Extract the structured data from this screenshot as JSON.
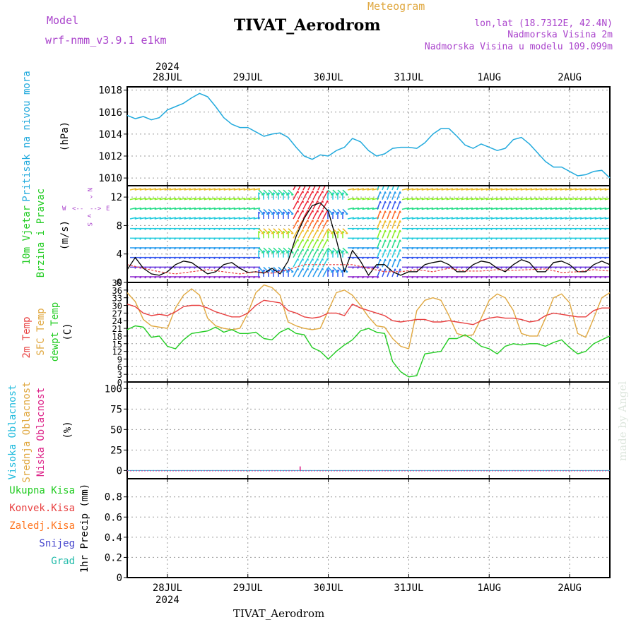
{
  "header": {
    "model_label": "Model",
    "model_name": "wrf-nmm_v3.9.1 e1km",
    "meteogram_label": "Meteogram",
    "station_title": "TIVAT_Aerodrom",
    "lonlat": "lon,lat (18.7312E, 42.4N)",
    "elevation": "Nadmorska Visina 2m",
    "model_elevation": "Nadmorska Visina u modelu 109.099m",
    "footer_station": "TIVAT_Aerodrom",
    "watermark": "made by Angel"
  },
  "colors": {
    "pressure": "#22aadd",
    "temp2m": "#e84040",
    "sfc_temp": "#e0a840",
    "dewpoint": "#22cc22",
    "wind_speed": "#000000",
    "gust": "#e84040",
    "high_cloud": "#22bbdd",
    "mid_cloud": "#e0a840",
    "low_cloud": "#dd2288",
    "total_precip": "#22cc22",
    "conv_precip": "#e84040",
    "frozen_precip": "#ff7722",
    "snow": "#4444cc",
    "hail": "#22bbaa",
    "left_legend_purple": "#aa44cc"
  },
  "chart_data": [
    {
      "type": "line",
      "panel": "pressure",
      "ylabel_side": "Pritisak na nivou mora",
      "ylabel_unit": "(hPa)",
      "ylim": [
        1009.3,
        1018.3
      ],
      "yticks": [
        "1010",
        "1012",
        "1014",
        "1016",
        "1018"
      ],
      "grid": true,
      "x_top_year": "2024",
      "x_tick_labels": [
        "28JUL",
        "29JUL",
        "30JUL",
        "31JUL",
        "1AUG",
        "2AUG"
      ],
      "x_days": [
        0,
        1,
        2,
        3,
        4,
        5
      ],
      "x_range_days": [
        -0.5,
        5.5
      ],
      "series": [
        {
          "x": [
            -0.5,
            -0.4,
            -0.3,
            -0.2,
            -0.1,
            0.0,
            0.1,
            0.2,
            0.3,
            0.4,
            0.5,
            0.6,
            0.7,
            0.8,
            0.9,
            1.0,
            1.1,
            1.2,
            1.3,
            1.4,
            1.5,
            1.6,
            1.7,
            1.8,
            1.9,
            2.0,
            2.1,
            2.2,
            2.3,
            2.4,
            2.5,
            2.6,
            2.7,
            2.8,
            2.9,
            3.0,
            3.1,
            3.2,
            3.3,
            3.4,
            3.5,
            3.6,
            3.7,
            3.8,
            3.9,
            4.0,
            4.1,
            4.2,
            4.3,
            4.4,
            4.5,
            4.6,
            4.7,
            4.8,
            4.9,
            5.0,
            5.1,
            5.2,
            5.3,
            5.4,
            5.5
          ],
          "values": [
            1015.7,
            1015.4,
            1015.6,
            1015.3,
            1015.5,
            1016.2,
            1016.5,
            1016.8,
            1017.3,
            1017.7,
            1017.4,
            1016.5,
            1015.5,
            1014.9,
            1014.6,
            1014.6,
            1014.2,
            1013.8,
            1014.0,
            1014.1,
            1013.7,
            1012.8,
            1012.0,
            1011.7,
            1012.1,
            1012.0,
            1012.5,
            1012.8,
            1013.6,
            1013.3,
            1012.5,
            1012.0,
            1012.2,
            1012.7,
            1012.8,
            1012.8,
            1012.7,
            1013.2,
            1014.0,
            1014.5,
            1014.5,
            1013.8,
            1013.0,
            1012.7,
            1013.1,
            1012.8,
            1012.5,
            1012.7,
            1013.5,
            1013.7,
            1013.1,
            1012.3,
            1011.5,
            1011.0,
            1011.0,
            1010.6,
            1010.2,
            1010.3,
            1010.6,
            1010.7,
            1010.0
          ]
        }
      ]
    },
    {
      "type": "line",
      "panel": "wind",
      "ylabel_side": [
        "10m Vjetar",
        "Brzina i Pravac"
      ],
      "ylabel_unit": "(m/s)",
      "compass_labels": {
        "north": "N",
        "south": "S",
        "west": "W",
        "east": "E",
        "north_sym": "^",
        "south_sym": "v",
        "west_sym": "<--",
        "east_sym": "-->"
      },
      "ylim": [
        0,
        13.6
      ],
      "yticks": [
        "0",
        "4",
        "8",
        "12"
      ],
      "grid": true,
      "series": [
        {
          "name": "speed",
          "x": [
            -0.5,
            -0.4,
            -0.3,
            -0.2,
            -0.1,
            0.0,
            0.1,
            0.2,
            0.3,
            0.4,
            0.5,
            0.6,
            0.7,
            0.8,
            0.9,
            1.0,
            1.1,
            1.2,
            1.3,
            1.4,
            1.5,
            1.6,
            1.7,
            1.8,
            1.9,
            2.0,
            2.1,
            2.2,
            2.3,
            2.4,
            2.5,
            2.6,
            2.7,
            2.8,
            2.9,
            3.0,
            3.1,
            3.2,
            3.3,
            3.4,
            3.5,
            3.6,
            3.7,
            3.8,
            3.9,
            4.0,
            4.1,
            4.2,
            4.3,
            4.4,
            4.5,
            4.6,
            4.7,
            4.8,
            4.9,
            5.0,
            5.1,
            5.2,
            5.3,
            5.4,
            5.5
          ],
          "values": [
            1.8,
            3.5,
            2.0,
            1.2,
            1.0,
            1.5,
            2.5,
            3.0,
            2.8,
            2.0,
            1.2,
            1.5,
            2.5,
            2.8,
            2.0,
            1.4,
            1.5,
            1.3,
            2.0,
            1.2,
            3.0,
            6.5,
            9.0,
            10.8,
            11.2,
            10.0,
            6.0,
            1.5,
            4.5,
            3.0,
            1.0,
            2.5,
            2.5,
            1.5,
            1.0,
            1.5,
            1.5,
            2.5,
            2.8,
            3.0,
            2.5,
            1.5,
            1.5,
            2.5,
            3.0,
            2.8,
            2.0,
            1.5,
            2.5,
            3.2,
            2.8,
            1.5,
            1.5,
            2.8,
            3.0,
            2.5,
            1.5,
            1.5,
            2.5,
            3.0,
            2.5
          ]
        },
        {
          "name": "gust",
          "x": [
            -0.5,
            -0.3,
            -0.1,
            0.1,
            0.3,
            0.5,
            0.7,
            0.9,
            1.1,
            1.3,
            1.5,
            1.7,
            1.9,
            2.1,
            2.3,
            2.5,
            2.7,
            2.9,
            3.1,
            3.3,
            3.5,
            3.7,
            3.9,
            4.1,
            4.3,
            4.5,
            4.7,
            4.9,
            5.1,
            5.3,
            5.5
          ],
          "values": [
            2.5,
            2.0,
            1.5,
            1.2,
            1.5,
            1.8,
            1.5,
            1.2,
            1.5,
            1.3,
            1.8,
            2.5,
            2.5,
            2.5,
            2.5,
            2.0,
            1.5,
            1.5,
            1.8,
            1.5,
            2.0,
            1.6,
            1.6,
            1.8,
            1.7,
            1.8,
            1.9,
            1.4,
            1.5,
            1.8,
            1.6
          ]
        }
      ]
    },
    {
      "type": "line",
      "panel": "temperature",
      "ylabel_side": [
        "2m Temp",
        "SFC Temp",
        "dewpt Temp"
      ],
      "ylabel_unit": "(C)",
      "ylim": [
        0,
        39
      ],
      "yticks": [
        "0",
        "3",
        "6",
        "9",
        "12",
        "15",
        "18",
        "21",
        "24",
        "27",
        "30",
        "33",
        "36",
        "39"
      ],
      "grid": true,
      "series": [
        {
          "name": "2m Temp",
          "x": [
            -0.5,
            -0.4,
            -0.3,
            -0.2,
            -0.1,
            0.0,
            0.1,
            0.2,
            0.3,
            0.4,
            0.5,
            0.6,
            0.7,
            0.8,
            0.9,
            1.0,
            1.1,
            1.2,
            1.3,
            1.4,
            1.5,
            1.6,
            1.7,
            1.8,
            1.9,
            2.0,
            2.1,
            2.2,
            2.3,
            2.4,
            2.5,
            2.6,
            2.7,
            2.8,
            2.9,
            3.0,
            3.1,
            3.2,
            3.3,
            3.4,
            3.5,
            3.6,
            3.7,
            3.8,
            3.9,
            4.0,
            4.1,
            4.2,
            4.3,
            4.4,
            4.5,
            4.6,
            4.7,
            4.8,
            4.9,
            5.0,
            5.1,
            5.2,
            5.3,
            5.4,
            5.5
          ],
          "values": [
            30.5,
            29.5,
            27.0,
            26.0,
            26.5,
            26.0,
            27.5,
            29.5,
            30.0,
            30.0,
            29.0,
            27.5,
            26.5,
            25.5,
            25.5,
            27.0,
            30.0,
            32.0,
            31.5,
            31.0,
            28.0,
            27.0,
            25.5,
            25.0,
            25.5,
            27.0,
            27.0,
            26.0,
            30.5,
            29.0,
            28.0,
            27.0,
            26.0,
            24.0,
            23.5,
            24.0,
            24.5,
            24.5,
            23.5,
            23.5,
            24.0,
            23.5,
            23.0,
            22.5,
            24.0,
            25.0,
            25.5,
            25.0,
            25.0,
            24.5,
            23.5,
            24.0,
            26.0,
            27.0,
            26.5,
            26.0,
            25.5,
            25.5,
            28.0,
            29.0,
            29.0
          ]
        },
        {
          "name": "SFC Temp",
          "x": [
            -0.5,
            -0.4,
            -0.3,
            -0.2,
            -0.1,
            0.0,
            0.1,
            0.2,
            0.3,
            0.4,
            0.5,
            0.6,
            0.7,
            0.8,
            0.9,
            1.0,
            1.1,
            1.2,
            1.3,
            1.4,
            1.5,
            1.6,
            1.7,
            1.8,
            1.9,
            2.0,
            2.1,
            2.2,
            2.3,
            2.4,
            2.5,
            2.6,
            2.7,
            2.8,
            2.9,
            3.0,
            3.1,
            3.2,
            3.3,
            3.4,
            3.5,
            3.6,
            3.7,
            3.8,
            3.9,
            4.0,
            4.1,
            4.2,
            4.3,
            4.4,
            4.5,
            4.6,
            4.7,
            4.8,
            4.9,
            5.0,
            5.1,
            5.2,
            5.3,
            5.4,
            5.5
          ],
          "values": [
            35.0,
            31.5,
            24.5,
            22.0,
            21.5,
            21.0,
            29.0,
            34.0,
            36.5,
            34.0,
            25.0,
            22.0,
            21.0,
            20.5,
            21.0,
            27.0,
            35.0,
            38.0,
            37.0,
            34.0,
            23.5,
            22.0,
            21.0,
            20.5,
            21.0,
            28.0,
            35.0,
            36.0,
            34.0,
            30.0,
            25.5,
            22.0,
            21.5,
            17.0,
            14.0,
            13.0,
            28.0,
            32.0,
            33.0,
            32.0,
            26.0,
            19.0,
            18.0,
            18.5,
            25.0,
            32.0,
            34.5,
            33.0,
            28.0,
            19.0,
            18.0,
            18.0,
            25.0,
            33.0,
            34.5,
            31.0,
            19.0,
            17.5,
            25.0,
            33.0,
            35.0
          ]
        },
        {
          "name": "dewpt Temp",
          "x": [
            -0.5,
            -0.4,
            -0.3,
            -0.2,
            -0.1,
            0.0,
            0.1,
            0.2,
            0.3,
            0.4,
            0.5,
            0.6,
            0.7,
            0.8,
            0.9,
            1.0,
            1.1,
            1.2,
            1.3,
            1.4,
            1.5,
            1.6,
            1.7,
            1.8,
            1.9,
            2.0,
            2.1,
            2.2,
            2.3,
            2.4,
            2.5,
            2.6,
            2.7,
            2.8,
            2.9,
            3.0,
            3.1,
            3.2,
            3.3,
            3.4,
            3.5,
            3.6,
            3.7,
            3.8,
            3.9,
            4.0,
            4.1,
            4.2,
            4.3,
            4.4,
            4.5,
            4.6,
            4.7,
            4.8,
            4.9,
            5.0,
            5.1,
            5.2,
            5.3,
            5.4,
            5.5
          ],
          "values": [
            20.5,
            22.0,
            21.5,
            17.5,
            18.0,
            14.0,
            13.0,
            16.5,
            19.0,
            19.5,
            20.0,
            21.5,
            19.5,
            20.5,
            19.0,
            19.0,
            19.5,
            17.0,
            16.5,
            19.5,
            21.0,
            19.0,
            18.5,
            13.5,
            12.0,
            9.0,
            12.0,
            14.5,
            16.5,
            20.0,
            21.0,
            19.5,
            19.0,
            8.0,
            4.0,
            2.0,
            2.5,
            11.0,
            11.5,
            12.0,
            17.0,
            17.0,
            18.5,
            16.5,
            14.0,
            13.0,
            11.0,
            14.0,
            15.0,
            14.5,
            15.0,
            15.0,
            14.0,
            15.5,
            16.5,
            13.5,
            11.0,
            12.0,
            15.0,
            16.5,
            18.0
          ]
        }
      ]
    },
    {
      "type": "bar",
      "panel": "cloud",
      "ylabel_side": [
        "Visoka Oblacnost",
        "Srednja Oblacnost",
        "Niska Oblacnost"
      ],
      "ylabel_unit": "(%)",
      "ylim": [
        -10,
        108
      ],
      "yticks": [
        "0",
        "25",
        "50",
        "75",
        "100"
      ],
      "grid": true,
      "series": [
        {
          "name": "Visoka Oblacnost",
          "x": [],
          "values": []
        },
        {
          "name": "Srednja Oblacnost",
          "x": [],
          "values": []
        },
        {
          "name": "Niska Oblacnost",
          "x": [
            1.65
          ],
          "values": [
            5
          ]
        }
      ]
    },
    {
      "type": "bar",
      "panel": "precip",
      "ylabel_side": [
        "Ukupna Kisa",
        "Konvek.Kisa",
        "Zaledj.Kisa",
        "Snijeg",
        "Grad"
      ],
      "ylabel_unit": "1hr Precip (mm)",
      "ylim": [
        0,
        0.98
      ],
      "yticks": [
        "0",
        "0.2",
        "0.4",
        "0.6",
        "0.8"
      ],
      "grid": true,
      "series": []
    }
  ]
}
